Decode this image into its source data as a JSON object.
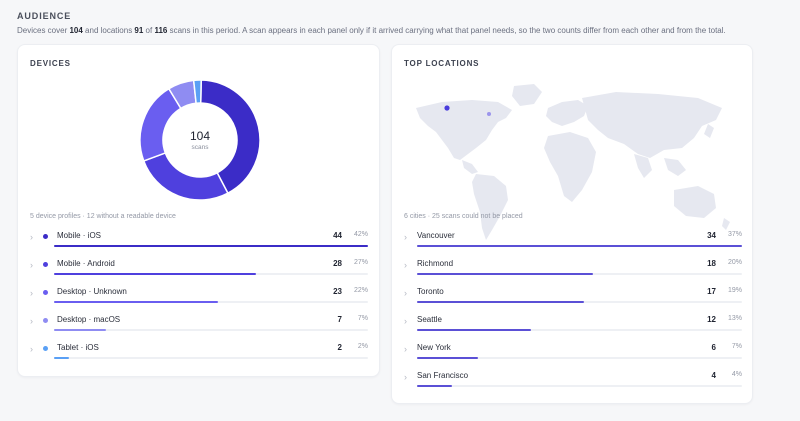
{
  "audience": {
    "title": "AUDIENCE",
    "intro_parts": [
      "Devices cover ",
      "104",
      " and locations ",
      "91",
      " of ",
      "116",
      " scans in this period. A scan appears in each panel only if it arrived carrying what that panel needs, so the two counts differ from each other and from the total."
    ]
  },
  "devices": {
    "title": "DEVICES",
    "total": "104",
    "total_label": "scans",
    "note": "5 device profiles · 12 without a readable device",
    "items": [
      {
        "label": "Mobile · iOS",
        "count": "44",
        "pct": "42%",
        "share": 0.42,
        "color": "#3b2cc7"
      },
      {
        "label": "Mobile · Android",
        "count": "28",
        "pct": "27%",
        "share": 0.27,
        "color": "#4f40de"
      },
      {
        "label": "Desktop · Unknown",
        "count": "23",
        "pct": "22%",
        "share": 0.22,
        "color": "#6a5ef0"
      },
      {
        "label": "Desktop · macOS",
        "count": "7",
        "pct": "7%",
        "share": 0.07,
        "color": "#8f8cf2"
      },
      {
        "label": "Tablet · iOS",
        "count": "2",
        "pct": "2%",
        "share": 0.02,
        "color": "#5aa0f5"
      }
    ]
  },
  "locations": {
    "title": "TOP LOCATIONS",
    "note": "6 cities · 25 scans could not be placed",
    "items": [
      {
        "label": "Vancouver",
        "count": "34",
        "pct": "37%",
        "share": 0.37
      },
      {
        "label": "Richmond",
        "count": "18",
        "pct": "20%",
        "share": 0.2
      },
      {
        "label": "Toronto",
        "count": "17",
        "pct": "19%",
        "share": 0.19
      },
      {
        "label": "Seattle",
        "count": "12",
        "pct": "13%",
        "share": 0.13
      },
      {
        "label": "New York",
        "count": "6",
        "pct": "7%",
        "share": 0.07
      },
      {
        "label": "San Francisco",
        "count": "4",
        "pct": "4%",
        "share": 0.04
      }
    ],
    "bar_color": "#5b50d6",
    "map_color": "#e6e8f0",
    "marker_primary": "#4a3ddc",
    "marker_secondary": "#9c95ec"
  },
  "icons": {
    "row_expand": "chevron-right-icon"
  }
}
